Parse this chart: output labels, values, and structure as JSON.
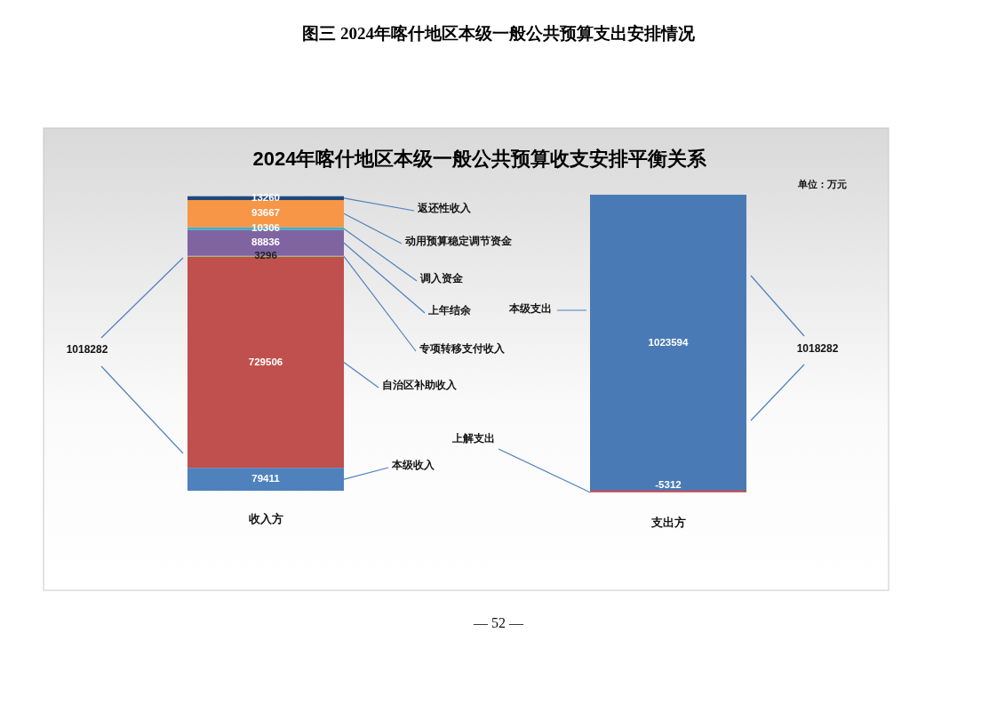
{
  "chart_data": {
    "type": "bar",
    "stacked": true,
    "data_labels": true,
    "title": "图三 2024年喀什地区本级一般公共预算支出安排情况",
    "subtitle": "2024年喀什地区本级一般公共预算收支安排平衡关系",
    "categories": [
      "收入方",
      "支出方"
    ],
    "series": [
      {
        "name": "本级收入",
        "color": "#4f81bd",
        "values": [
          79411,
          null
        ]
      },
      {
        "name": "自治区补助收入",
        "color": "#c0504d",
        "values": [
          729506,
          null
        ]
      },
      {
        "name": "专项转移支付收入",
        "color": "#9bbb59",
        "values": [
          3296,
          null
        ]
      },
      {
        "name": "上年结余",
        "color": "#8064a2",
        "values": [
          88836,
          null
        ]
      },
      {
        "name": "调入资金",
        "color": "#4bacc6",
        "values": [
          10306,
          null
        ]
      },
      {
        "name": "动用预算稳定调节资金",
        "color": "#f79646",
        "values": [
          93667,
          null
        ]
      },
      {
        "name": "返还性收入",
        "color": "#1f497d",
        "values": [
          13260,
          null
        ]
      },
      {
        "name": "本级支出",
        "color": "#4a7ab5",
        "values": [
          null,
          1023594
        ]
      },
      {
        "name": "上解支出",
        "color": "#e0403a",
        "values": [
          null,
          -5312
        ]
      }
    ],
    "annotations": [
      "1018282",
      "1018282",
      "单位：万元",
      "— 52 —"
    ]
  }
}
